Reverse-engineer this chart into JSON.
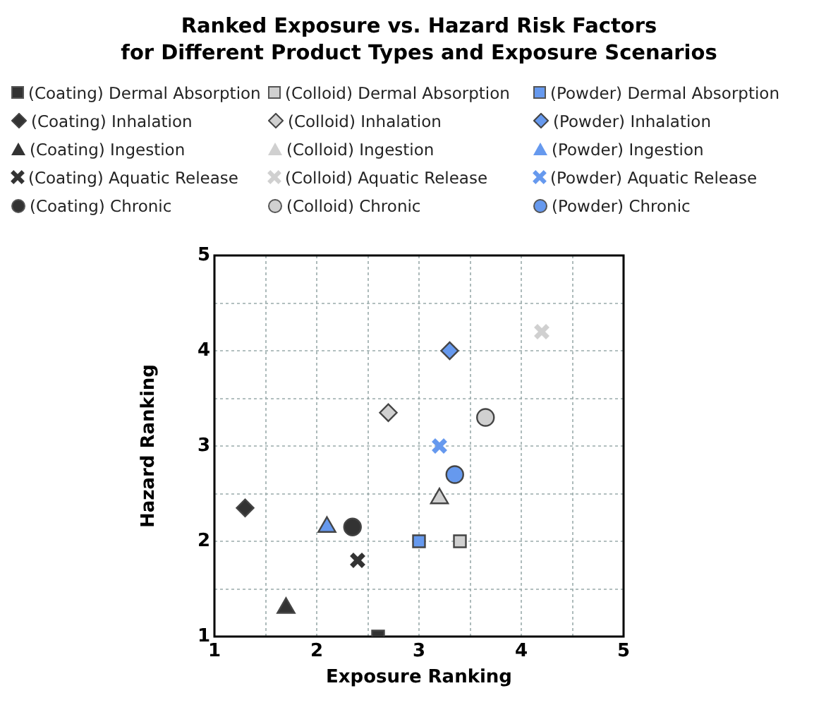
{
  "chart_data": {
    "type": "scatter",
    "title": "Ranked Exposure vs. Hazard Risk Factors\nfor Different Product Types and Exposure Scenarios",
    "xlabel": "Exposure Ranking",
    "ylabel": "Hazard Ranking",
    "xlim": [
      1,
      5
    ],
    "ylim": [
      1,
      5
    ],
    "xticks": [
      1,
      {
        "value": 1.5,
        "label": null
      },
      2,
      {
        "value": 2.5,
        "label": null
      },
      3,
      {
        "value": 3.5,
        "label": null
      },
      4,
      {
        "value": 4.5,
        "label": null
      },
      5
    ],
    "yticks": [
      1,
      {
        "value": 1.5,
        "label": null
      },
      2,
      {
        "value": 2.5,
        "label": null
      },
      3,
      {
        "value": 3.5,
        "label": null
      },
      4,
      {
        "value": 4.5,
        "label": null
      },
      5
    ],
    "grid": true,
    "legend": "top",
    "series": [
      {
        "name": "(Coating) Dermal Absorption",
        "color": "#333333",
        "marker": "square",
        "x": [
          2.6
        ],
        "values": [
          1.0
        ]
      },
      {
        "name": "(Colloid) Dermal Absorption",
        "color": "#d0d0d0",
        "marker": "square",
        "x": [
          3.4
        ],
        "values": [
          2.0
        ]
      },
      {
        "name": "(Powder) Dermal Absorption",
        "color": "#6699ee",
        "marker": "square",
        "x": [
          3.0
        ],
        "values": [
          2.0
        ]
      },
      {
        "name": "(Coating) Inhalation",
        "color": "#333333",
        "marker": "diamond",
        "x": [
          1.3
        ],
        "values": [
          2.35
        ]
      },
      {
        "name": "(Colloid) Inhalation",
        "color": "#d0d0d0",
        "marker": "diamond",
        "x": [
          2.7
        ],
        "values": [
          3.35
        ]
      },
      {
        "name": "(Powder) Inhalation",
        "color": "#6699ee",
        "marker": "diamond",
        "x": [
          3.3
        ],
        "values": [
          4.0
        ]
      },
      {
        "name": "(Coating) Ingestion",
        "color": "#333333",
        "marker": "triangle",
        "x": [
          1.7
        ],
        "values": [
          1.3
        ]
      },
      {
        "name": "(Colloid) Ingestion",
        "color": "#d0d0d0",
        "marker": "triangle",
        "x": [
          3.2
        ],
        "values": [
          2.45
        ]
      },
      {
        "name": "(Powder) Ingestion",
        "color": "#6699ee",
        "marker": "triangle",
        "x": [
          2.1
        ],
        "values": [
          2.15
        ]
      },
      {
        "name": "(Coating) Aquatic Release",
        "color": "#333333",
        "marker": "cross",
        "x": [
          2.4
        ],
        "values": [
          1.8
        ]
      },
      {
        "name": "(Colloid) Aquatic Release",
        "color": "#d0d0d0",
        "marker": "cross",
        "x": [
          4.2
        ],
        "values": [
          4.2
        ]
      },
      {
        "name": "(Powder) Aquatic Release",
        "color": "#6699ee",
        "marker": "cross",
        "x": [
          3.2
        ],
        "values": [
          3.0
        ]
      },
      {
        "name": "(Coating) Chronic",
        "color": "#333333",
        "marker": "circle",
        "x": [
          2.35
        ],
        "values": [
          2.15
        ]
      },
      {
        "name": "(Colloid) Chronic",
        "color": "#d0d0d0",
        "marker": "circle",
        "x": [
          3.65
        ],
        "values": [
          3.3
        ]
      },
      {
        "name": "(Powder) Chronic",
        "color": "#6699ee",
        "marker": "circle",
        "x": [
          3.35
        ],
        "values": [
          2.7
        ]
      }
    ]
  }
}
